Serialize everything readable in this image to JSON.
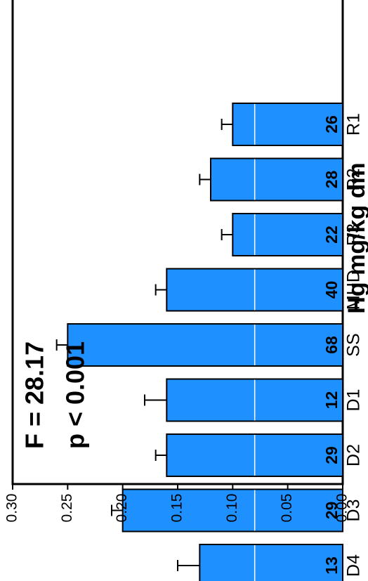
{
  "chart_data": {
    "type": "bar",
    "orientation": "horizontal",
    "rotated_page": "image rotated 90 degrees clockwise; value axis runs right-to-left along the bottom",
    "categories": [
      "R1",
      "R2",
      "R3",
      "MHD",
      "SS",
      "D1",
      "D2",
      "D3",
      "D4"
    ],
    "values": [
      0.1,
      0.12,
      0.1,
      0.16,
      0.25,
      0.16,
      0.16,
      0.2,
      0.13
    ],
    "error_bars": [
      0.01,
      0.01,
      0.01,
      0.01,
      0.01,
      0.02,
      0.01,
      0.01,
      0.02
    ],
    "counts": [
      "26",
      "28",
      "22",
      "40",
      "68",
      "12",
      "29",
      "29",
      "13"
    ],
    "ylabel": "Hg mg/kg dm",
    "ylim": [
      0,
      0.3
    ],
    "yticks": [
      "0.00",
      "0.05",
      "0.10",
      "0.15",
      "0.20",
      "0.25",
      "0.30"
    ],
    "annotations": [
      "F = 28.17",
      "p < 0.001"
    ],
    "grid": false,
    "reference_line": 0.08,
    "colors": {
      "bar": "#1e90ff",
      "bar_edge": "#000000",
      "reference_line": "#ffffff",
      "text": "#000000"
    }
  }
}
